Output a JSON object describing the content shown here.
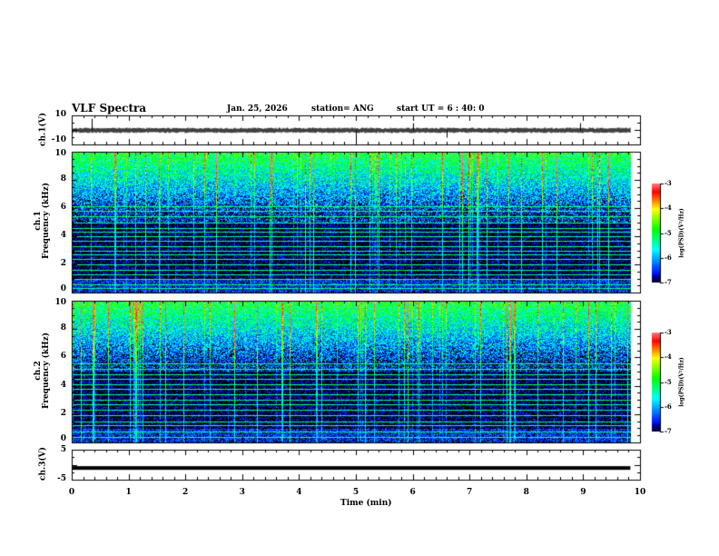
{
  "header": {
    "title": "VLF Spectra",
    "date": "Jan. 25, 2026",
    "station": "station= ANG",
    "start_ut": "start  UT =   6 : 40: 0"
  },
  "colors": {
    "background": "#ffffff",
    "axis": "#000000"
  },
  "chart_data": [
    {
      "type": "line",
      "name": "ch.1 waveform",
      "ylabel": "ch.1(V)",
      "ylim": [
        -10,
        10
      ],
      "yticks": [
        "10",
        "-10"
      ],
      "xlim": [
        0,
        10
      ],
      "data_end_min": 9.83,
      "baseline_v": 0,
      "spikes": [
        {
          "t": 0.35,
          "v": 8
        },
        {
          "t": 5.0,
          "v": -7
        },
        {
          "t": 6.0,
          "v": 5
        },
        {
          "t": 6.6,
          "v": -5
        },
        {
          "t": 8.95,
          "v": 5
        }
      ]
    },
    {
      "type": "heatmap",
      "name": "ch.1 spectrogram",
      "ylabel": "ch.1\nFrequency (kHz)",
      "ylabel_line1": "ch.1",
      "ylabel_line2": "Frequency (kHz)",
      "ylim": [
        0,
        10
      ],
      "yticks": [
        "0",
        "2",
        "4",
        "6",
        "8",
        "10"
      ],
      "xlim": [
        0,
        10
      ],
      "colorbar": {
        "label": "log(PSD)(V²/Hz)",
        "range": [
          -7,
          -3
        ],
        "ticks": [
          "-3",
          "-4",
          "-5",
          "-6",
          "-7"
        ]
      },
      "narrowband_lines_khz": [
        0.3,
        0.6,
        1.0,
        1.3,
        1.6,
        2.0,
        2.4,
        2.7,
        3.0,
        3.3,
        3.7,
        4.0,
        4.3,
        4.6,
        5.0,
        5.4,
        5.8,
        6.1
      ]
    },
    {
      "type": "heatmap",
      "name": "ch.2 spectrogram",
      "ylabel_line1": "ch.2",
      "ylabel_line2": "Frequency (kHz)",
      "ylim": [
        0,
        10
      ],
      "yticks": [
        "0",
        "2",
        "4",
        "6",
        "8",
        "10"
      ],
      "xlim": [
        0,
        10
      ],
      "colorbar": {
        "label": "log(PSD)(V²/Hz)",
        "range": [
          -7,
          -3
        ],
        "ticks": [
          "-3",
          "-4",
          "-5",
          "-6",
          "-7"
        ]
      },
      "narrowband_lines_khz": [
        0.4,
        0.8,
        1.2,
        1.5,
        1.9,
        2.3,
        2.7,
        3.0,
        3.4,
        3.8,
        4.1,
        4.5,
        4.8,
        5.2,
        5.6
      ]
    },
    {
      "type": "line",
      "name": "ch.3 waveform",
      "ylabel": "ch.3(V)",
      "ylim": [
        -5,
        5
      ],
      "yticks": [
        "5",
        "-5"
      ],
      "xlim": [
        0,
        10
      ],
      "data_end_min": 9.83,
      "constant_v": -1.1
    }
  ],
  "xaxis": {
    "label": "Time (min)",
    "ticks": [
      "0",
      "1",
      "2",
      "3",
      "4",
      "5",
      "6",
      "7",
      "8",
      "9",
      "10"
    ]
  }
}
